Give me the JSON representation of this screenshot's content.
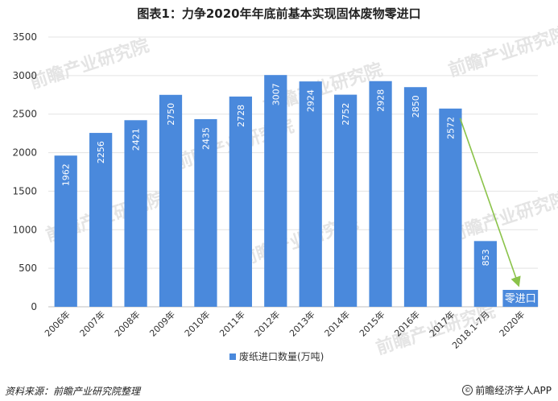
{
  "chart_data": {
    "type": "bar",
    "title": "图表1：力争2020年年底前基本实现固体废物零进口",
    "categories": [
      "2006年",
      "2007年",
      "2008年",
      "2009年",
      "2010年",
      "2011年",
      "2012年",
      "2013年",
      "2014年",
      "2015年",
      "2016年",
      "2017年",
      "2018.1-7月",
      "2020年"
    ],
    "series": [
      {
        "name": "废纸进口数量(万吨)",
        "values": [
          1962,
          2256,
          2421,
          2750,
          2435,
          2728,
          3007,
          2924,
          2752,
          2928,
          2850,
          2572,
          853,
          0
        ],
        "data_labels": [
          "1962",
          "2256",
          "2421",
          "2750",
          "2435",
          "2728",
          "3007",
          "2924",
          "2752",
          "2928",
          "2850",
          "2572",
          "853",
          "零进口"
        ]
      }
    ],
    "ylim": [
      0,
      3500
    ],
    "yticks": [
      0,
      500,
      1000,
      1500,
      2000,
      2500,
      3000,
      3500
    ],
    "xlabel": "",
    "ylabel": "",
    "grid": true,
    "legend_position": "bottom-center",
    "bar_color": "#4a89dc",
    "arrow_color": "#8bc34a"
  },
  "footer": {
    "source": "资料来源：前瞻产业研究院整理",
    "credit": "前瞻经济学人APP",
    "credit_icon": "copyright-icon"
  },
  "watermark": {
    "text": "前瞻产业研究院"
  }
}
